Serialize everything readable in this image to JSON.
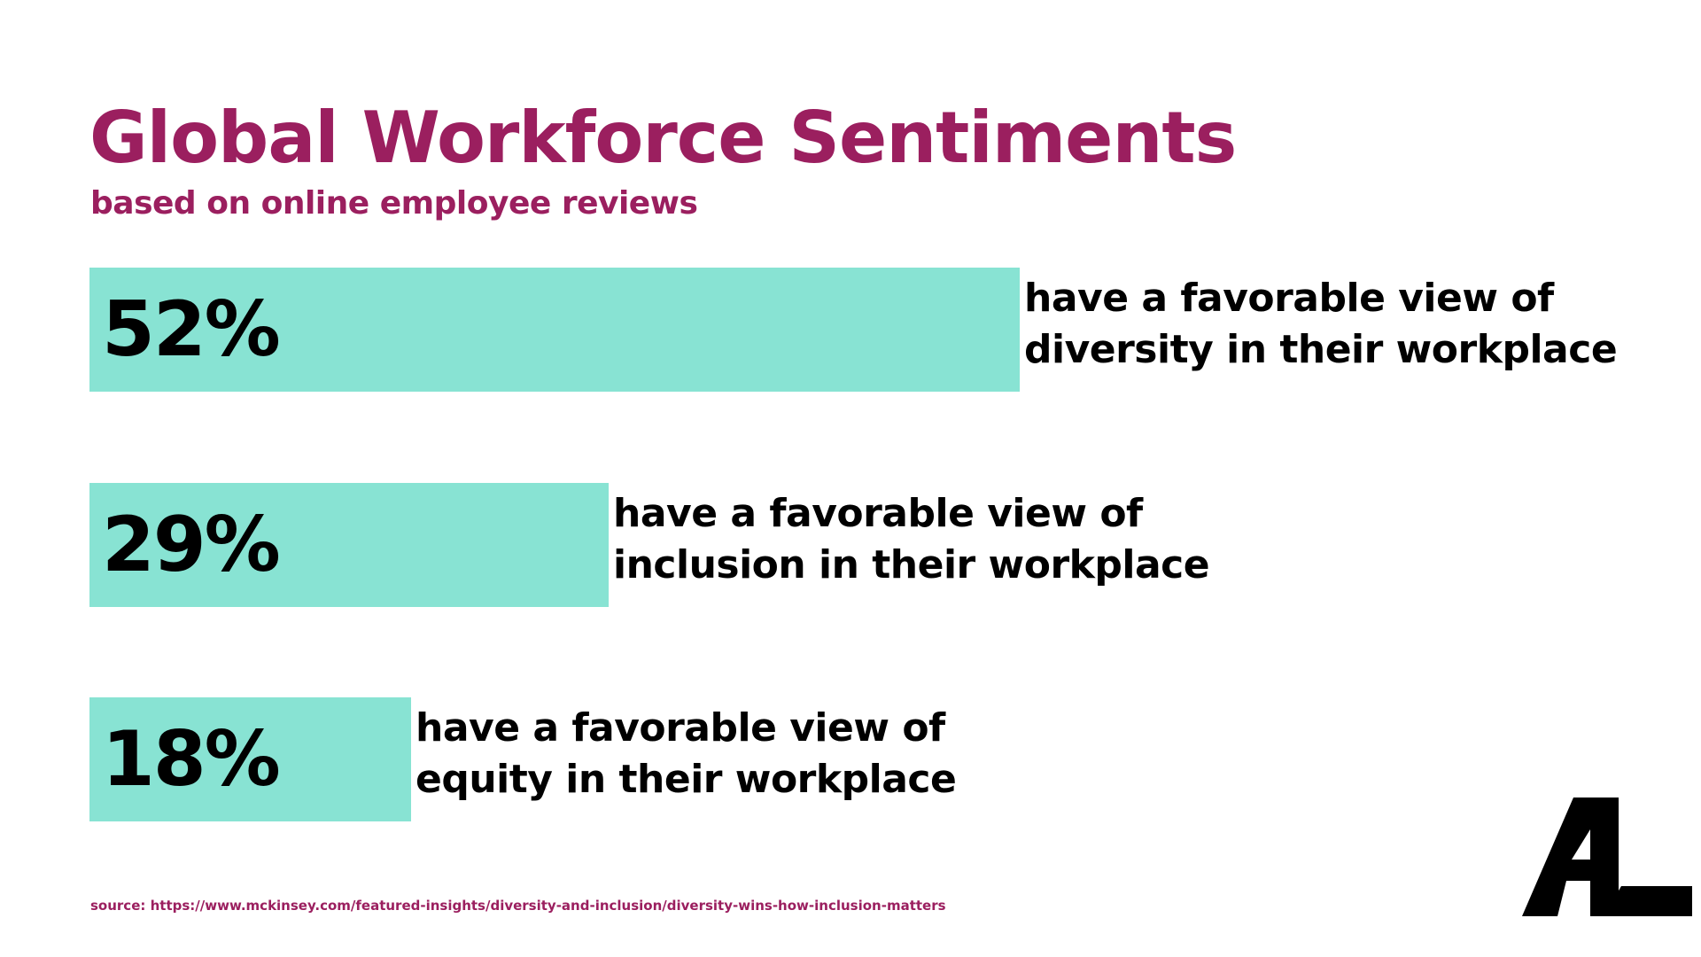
{
  "colors": {
    "title": "#9b1f5f",
    "bar": "#88e3d3",
    "text": "#000000"
  },
  "chart_data": {
    "type": "bar",
    "orientation": "horizontal",
    "title": "Global Workforce Sentiments",
    "subtitle": "based on online employee reviews",
    "unit": "%",
    "series": [
      {
        "values": [
          52,
          29,
          18
        ]
      }
    ],
    "items": [
      {
        "value": 52,
        "value_label": "52%",
        "label_line1": "have a favorable view of",
        "label_line2": "diversity in their workplace"
      },
      {
        "value": 29,
        "value_label": "29%",
        "label_line1": "have a favorable view of",
        "label_line2": "inclusion in their workplace"
      },
      {
        "value": 18,
        "value_label": "18%",
        "label_line1": "have a favorable view of",
        "label_line2": "equity in their workplace"
      }
    ],
    "source": "source: https://www.mckinsey.com/featured-insights/diversity-and-inclusion/diversity-wins-how-inclusion-matters"
  },
  "logo": {
    "icon": "al-logo-icon"
  }
}
